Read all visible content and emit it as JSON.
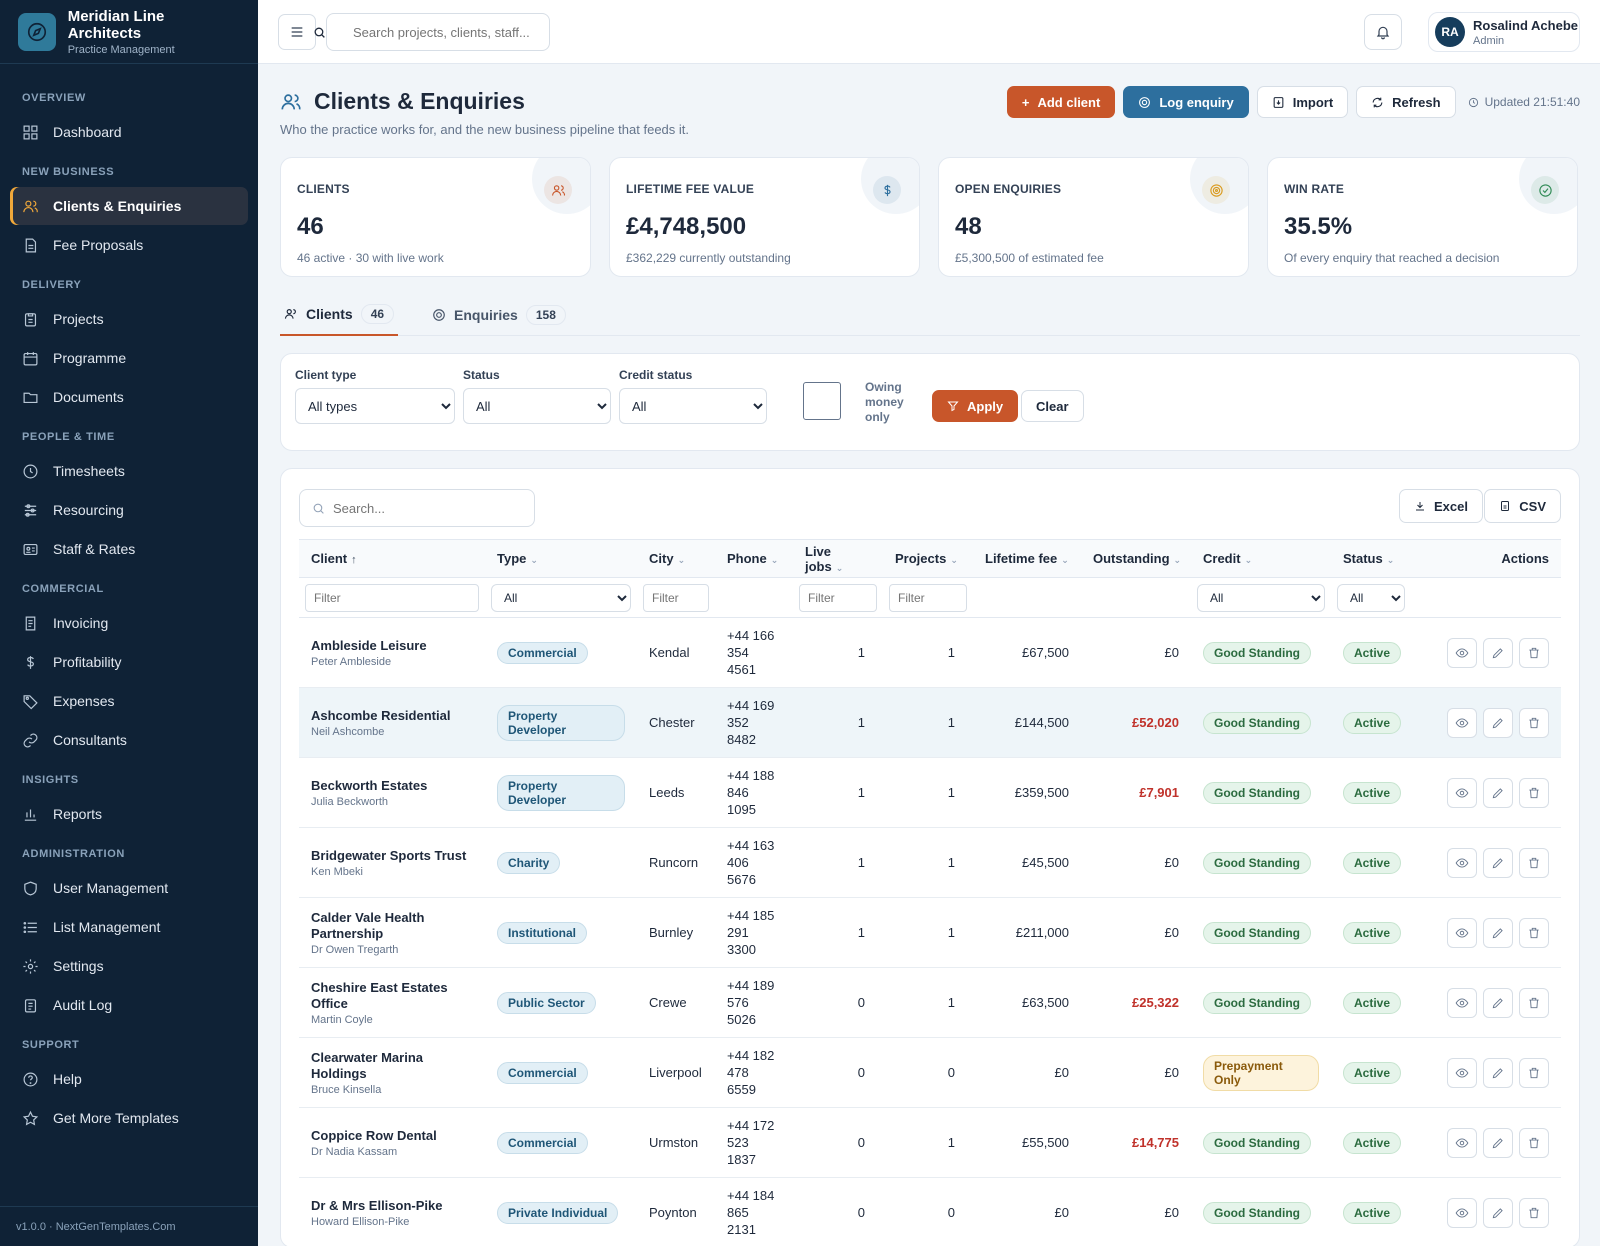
{
  "app": {
    "name": "Meridian Line Architects",
    "subtitle": "Practice Management",
    "version": "v1.0.0 · NextGenTemplates.Com"
  },
  "colors": {
    "sidebar": "#0f2236",
    "accent": "#c8562a",
    "blue": "#2d6f9e",
    "active_marker": "#f0a83a"
  },
  "nav": {
    "sections": [
      {
        "title": "OVERVIEW",
        "items": [
          {
            "label": "Dashboard",
            "icon": "dashboard-icon"
          }
        ]
      },
      {
        "title": "NEW BUSINESS",
        "items": [
          {
            "label": "Clients & Enquiries",
            "icon": "users-icon",
            "active": true
          },
          {
            "label": "Fee Proposals",
            "icon": "document-icon"
          }
        ]
      },
      {
        "title": "DELIVERY",
        "items": [
          {
            "label": "Projects",
            "icon": "clipboard-icon"
          },
          {
            "label": "Programme",
            "icon": "calendar-icon"
          },
          {
            "label": "Documents",
            "icon": "folder-icon"
          }
        ]
      },
      {
        "title": "PEOPLE & TIME",
        "items": [
          {
            "label": "Timesheets",
            "icon": "clock-icon"
          },
          {
            "label": "Resourcing",
            "icon": "sliders-icon"
          },
          {
            "label": "Staff & Rates",
            "icon": "id-card-icon"
          }
        ]
      },
      {
        "title": "COMMERCIAL",
        "items": [
          {
            "label": "Invoicing",
            "icon": "invoice-icon"
          },
          {
            "label": "Profitability",
            "icon": "dollar-icon"
          },
          {
            "label": "Expenses",
            "icon": "tag-icon"
          },
          {
            "label": "Consultants",
            "icon": "link-icon"
          }
        ]
      },
      {
        "title": "INSIGHTS",
        "items": [
          {
            "label": "Reports",
            "icon": "bar-chart-icon"
          }
        ]
      },
      {
        "title": "ADMINISTRATION",
        "items": [
          {
            "label": "User Management",
            "icon": "shield-icon"
          },
          {
            "label": "List Management",
            "icon": "list-icon"
          },
          {
            "label": "Settings",
            "icon": "gear-icon"
          },
          {
            "label": "Audit Log",
            "icon": "clipboard-list-icon"
          }
        ]
      },
      {
        "title": "SUPPORT",
        "items": [
          {
            "label": "Help",
            "icon": "help-icon"
          },
          {
            "label": "Get More Templates",
            "icon": "star-icon"
          }
        ]
      }
    ]
  },
  "topbar": {
    "search_placeholder": "Search projects, clients, staff...",
    "user": {
      "initials": "RA",
      "name": "Rosalind Achebe",
      "role": "Admin"
    }
  },
  "page": {
    "title": "Clients & Enquiries",
    "subtitle": "Who the practice works for, and the new business pipeline that feeds it.",
    "actions": {
      "add_client": "Add client",
      "log_enquiry": "Log enquiry",
      "import": "Import",
      "refresh": "Refresh",
      "updated": "Updated 21:51:40"
    }
  },
  "kpis": [
    {
      "label": "CLIENTS",
      "value": "46",
      "sub": "46 active · 30 with live work",
      "icon": "users-icon",
      "color": "#c8562a"
    },
    {
      "label": "LIFETIME FEE VALUE",
      "value": "£4,748,500",
      "sub": "£362,229 currently outstanding",
      "icon": "dollar-icon",
      "color": "#2d6f9e"
    },
    {
      "label": "OPEN ENQUIRIES",
      "value": "48",
      "sub": "£5,300,500 of estimated fee",
      "icon": "target-icon",
      "color": "#d99a1e"
    },
    {
      "label": "WIN RATE",
      "value": "35.5%",
      "sub": "Of every enquiry that reached a decision",
      "icon": "check-circle-icon",
      "color": "#2f8a55"
    }
  ],
  "tabs": [
    {
      "label": "Clients",
      "count": "46",
      "active": true
    },
    {
      "label": "Enquiries",
      "count": "158"
    }
  ],
  "filters": {
    "client_type": {
      "label": "Client type",
      "value": "All types"
    },
    "status": {
      "label": "Status",
      "value": "All"
    },
    "credit": {
      "label": "Credit status",
      "value": "All"
    },
    "owing_label": "Owing money only",
    "apply": "Apply",
    "clear": "Clear"
  },
  "table": {
    "search_placeholder": "Search...",
    "export": {
      "excel": "Excel",
      "csv": "CSV"
    },
    "columns": [
      "Client",
      "Type",
      "City",
      "Phone",
      "Live jobs",
      "Projects",
      "Lifetime fee",
      "Outstanding",
      "Credit",
      "Status",
      "Actions"
    ],
    "filter_placeholder": "Filter",
    "filter_all": "All",
    "rows": [
      {
        "name": "Ambleside Leisure",
        "contact": "Peter Ambleside",
        "type": "Commercial",
        "city": "Kendal",
        "phone": [
          "+44 166",
          "354",
          "4561"
        ],
        "live": "1",
        "projects": "1",
        "fee": "£67,500",
        "outstanding": "£0",
        "owed": false,
        "credit": "Good Standing",
        "status": "Active"
      },
      {
        "name": "Ashcombe Residential",
        "contact": "Neil Ashcombe",
        "type": "Property Developer",
        "city": "Chester",
        "phone": [
          "+44 169",
          "352",
          "8482"
        ],
        "live": "1",
        "projects": "1",
        "fee": "£144,500",
        "outstanding": "£52,020",
        "owed": true,
        "credit": "Good Standing",
        "status": "Active"
      },
      {
        "name": "Beckworth Estates",
        "contact": "Julia Beckworth",
        "type": "Property Developer",
        "city": "Leeds",
        "phone": [
          "+44 188",
          "846",
          "1095"
        ],
        "live": "1",
        "projects": "1",
        "fee": "£359,500",
        "outstanding": "£7,901",
        "owed": true,
        "credit": "Good Standing",
        "status": "Active"
      },
      {
        "name": "Bridgewater Sports Trust",
        "contact": "Ken Mbeki",
        "type": "Charity",
        "city": "Runcorn",
        "phone": [
          "+44 163",
          "406",
          "5676"
        ],
        "live": "1",
        "projects": "1",
        "fee": "£45,500",
        "outstanding": "£0",
        "owed": false,
        "credit": "Good Standing",
        "status": "Active"
      },
      {
        "name": "Calder Vale Health Partnership",
        "contact": "Dr Owen Tregarth",
        "type": "Institutional",
        "city": "Burnley",
        "phone": [
          "+44 185",
          "291",
          "3300"
        ],
        "live": "1",
        "projects": "1",
        "fee": "£211,000",
        "outstanding": "£0",
        "owed": false,
        "credit": "Good Standing",
        "status": "Active"
      },
      {
        "name": "Cheshire East Estates Office",
        "contact": "Martin Coyle",
        "type": "Public Sector",
        "city": "Crewe",
        "phone": [
          "+44 189",
          "576",
          "5026"
        ],
        "live": "0",
        "projects": "1",
        "fee": "£63,500",
        "outstanding": "£25,322",
        "owed": true,
        "credit": "Good Standing",
        "status": "Active"
      },
      {
        "name": "Clearwater Marina Holdings",
        "contact": "Bruce Kinsella",
        "type": "Commercial",
        "city": "Liverpool",
        "phone": [
          "+44 182",
          "478",
          "6559"
        ],
        "live": "0",
        "projects": "0",
        "fee": "£0",
        "outstanding": "£0",
        "owed": false,
        "credit": "Prepayment Only",
        "status": "Active"
      },
      {
        "name": "Coppice Row Dental",
        "contact": "Dr Nadia Kassam",
        "type": "Commercial",
        "city": "Urmston",
        "phone": [
          "+44 172",
          "523",
          "1837"
        ],
        "live": "0",
        "projects": "1",
        "fee": "£55,500",
        "outstanding": "£14,775",
        "owed": true,
        "credit": "Good Standing",
        "status": "Active"
      },
      {
        "name": "Dr & Mrs Ellison-Pike",
        "contact": "Howard Ellison-Pike",
        "type": "Private Individual",
        "city": "Poynton",
        "phone": [
          "+44 184",
          "865",
          "2131"
        ],
        "live": "0",
        "projects": "0",
        "fee": "£0",
        "outstanding": "£0",
        "owed": false,
        "credit": "Good Standing",
        "status": "Active"
      }
    ]
  }
}
